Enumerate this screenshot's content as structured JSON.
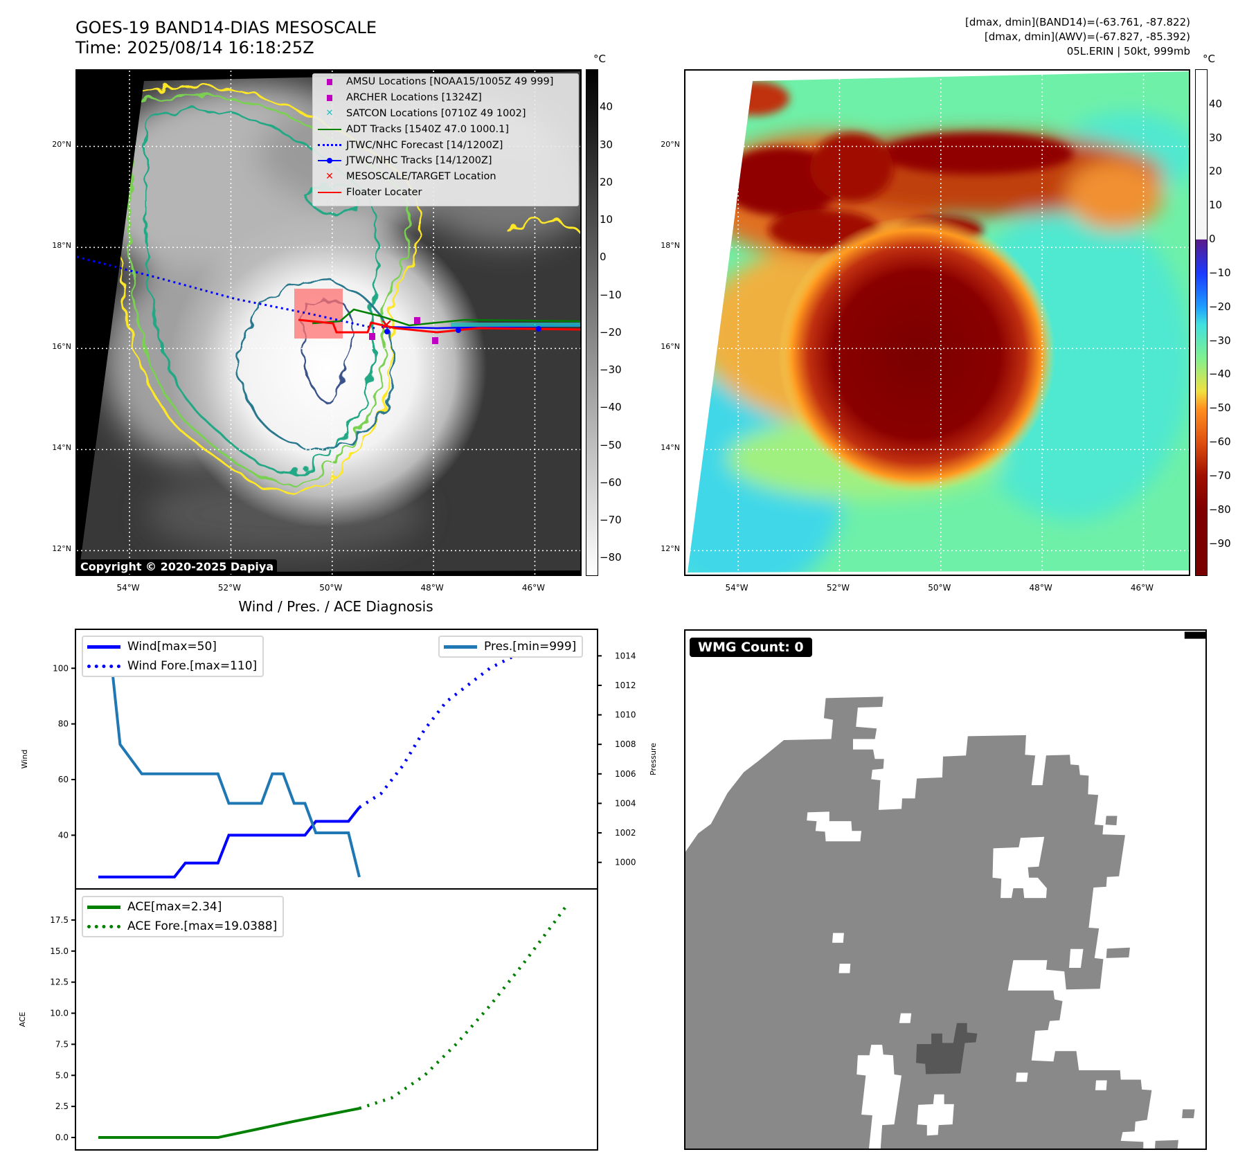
{
  "header": {
    "title_line1": "GOES-19 BAND14-DIAS MESOSCALE",
    "title_line2": "Time: 2025/08/14 16:18:25Z",
    "info_line1": "[dmax, dmin](BAND14)=(-63.761, -87.822)",
    "info_line2": "[dmax, dmin](AWV)=(-67.827, -85.392)",
    "info_line3": "05L.ERIN | 50kt, 999mb"
  },
  "maps": {
    "lat_labels": [
      "20°N",
      "18°N",
      "16°N",
      "14°N",
      "12°N"
    ],
    "lat_values": [
      20,
      18,
      16,
      14,
      12
    ],
    "lon_labels": [
      "54°W",
      "52°W",
      "50°W",
      "48°W",
      "46°W"
    ],
    "lon_values": [
      -54,
      -52,
      -50,
      -48,
      -46
    ],
    "lon_range": [
      -55.04,
      -45.05
    ],
    "lat_range": [
      11.47,
      21.5
    ],
    "unit": "°C",
    "copyright": "Copyright © 2020-2025 Dapiya"
  },
  "legend": [
    {
      "label": "AMSU Locations [NOAA15/1005Z 49 999]",
      "icon": "magenta-square",
      "color": "#c000c0"
    },
    {
      "label": "ARCHER Locations [1324Z]",
      "icon": "magenta-square",
      "color": "#c000c0"
    },
    {
      "label": "SATCON Locations [0710Z 49 1002]",
      "icon": "cyan-x",
      "color": "#20c0c0"
    },
    {
      "label": "ADT Tracks [1540Z 47.0 1000.1]",
      "icon": "green-line",
      "color": "#008000"
    },
    {
      "label": "JTWC/NHC Forecast [14/1200Z]",
      "icon": "blue-dotted-line",
      "color": "#0000ff"
    },
    {
      "label": "JTWC/NHC Tracks [14/1200Z]",
      "icon": "blue-line-dot",
      "color": "#0000ff"
    },
    {
      "label": "MESOSCALE/TARGET Location",
      "icon": "red-x",
      "color": "#ff0000"
    },
    {
      "label": "Floater Locater",
      "icon": "red-line",
      "color": "#ff0000"
    }
  ],
  "colorbar_gray": {
    "ticks": [
      40,
      30,
      20,
      10,
      0,
      -10,
      -20,
      -30,
      -40,
      -50,
      -60,
      -70,
      -80
    ],
    "tick_labels": [
      "40",
      "30",
      "20",
      "10",
      "0",
      "−10",
      "−20",
      "−30",
      "−40",
      "−50",
      "−60",
      "−70",
      "−80"
    ],
    "range": [
      50.2,
      -84.7
    ]
  },
  "colorbar_color": {
    "ticks": [
      40,
      30,
      20,
      10,
      0,
      -10,
      -20,
      -30,
      -40,
      -50,
      -60,
      -70,
      -80,
      -90
    ],
    "tick_labels": [
      "40",
      "30",
      "20",
      "10",
      "0",
      "−10",
      "−20",
      "−30",
      "−40",
      "−50",
      "−60",
      "−70",
      "−80",
      "−90"
    ],
    "range": [
      50.4,
      -99.5
    ]
  },
  "chart_data": [
    {
      "type": "line",
      "title": "Wind / Pres. / ACE Diagnosis",
      "ylabel": "Wind",
      "y2label": "Pressure",
      "xlim": [
        -2.1,
        45.9
      ],
      "ylim": [
        20.7,
        114
      ],
      "y2lim": [
        998.2,
        1015.8
      ],
      "yticks": [
        40,
        60,
        80,
        100
      ],
      "y2ticks": [
        1000,
        1002,
        1004,
        1006,
        1008,
        1010,
        1012,
        1014
      ],
      "series": [
        {
          "name": "Wind[max=50]",
          "axis": "left",
          "style": "solid",
          "color": "#0000ff",
          "x": [
            0,
            7,
            8,
            11,
            12,
            19,
            20,
            23,
            24
          ],
          "y": [
            25,
            25,
            30,
            30,
            40,
            40,
            45,
            45,
            50
          ]
        },
        {
          "name": "Wind Fore.[max=110]",
          "axis": "left",
          "style": "dotted",
          "color": "#0000ff",
          "x": [
            24,
            26,
            28,
            30,
            32,
            34,
            36,
            38,
            40
          ],
          "y": [
            50,
            55,
            65,
            78,
            88,
            94,
            100,
            104,
            105
          ]
        },
        {
          "name": "Pres.[min=999]",
          "axis": "right",
          "style": "solid",
          "color": "#1f77b4",
          "x": [
            0,
            1,
            2,
            4,
            11,
            12,
            15,
            16,
            17,
            18,
            19,
            20,
            23,
            24
          ],
          "y": [
            1015,
            1015,
            1008,
            1006,
            1006,
            1004,
            1004,
            1006,
            1006,
            1004,
            1004,
            1002,
            1002,
            999
          ]
        }
      ]
    },
    {
      "type": "line",
      "ylabel": "ACE",
      "xlim": [
        -2.1,
        45.9
      ],
      "ylim": [
        -1.0,
        20.0
      ],
      "yticks": [
        0,
        2.5,
        5,
        7.5,
        10,
        12.5,
        15,
        17.5
      ],
      "ytick_labels": [
        "0.0",
        "2.5",
        "5.0",
        "7.5",
        "10.0",
        "12.5",
        "15.0",
        "17.5"
      ],
      "series": [
        {
          "name": "ACE[max=2.34]",
          "style": "solid",
          "color": "#008000",
          "x": [
            0,
            11,
            18,
            24
          ],
          "y": [
            0,
            0,
            1.3,
            2.34
          ]
        },
        {
          "name": "ACE Fore.[max=19.0388]",
          "style": "dotted",
          "color": "#008000",
          "x": [
            24,
            27,
            30,
            33,
            36,
            39,
            42,
            43
          ],
          "y": [
            2.34,
            3.2,
            5.0,
            7.6,
            10.6,
            13.9,
            17.4,
            18.6
          ]
        }
      ]
    }
  ],
  "wmg": {
    "label": "WMG Count: 0"
  }
}
